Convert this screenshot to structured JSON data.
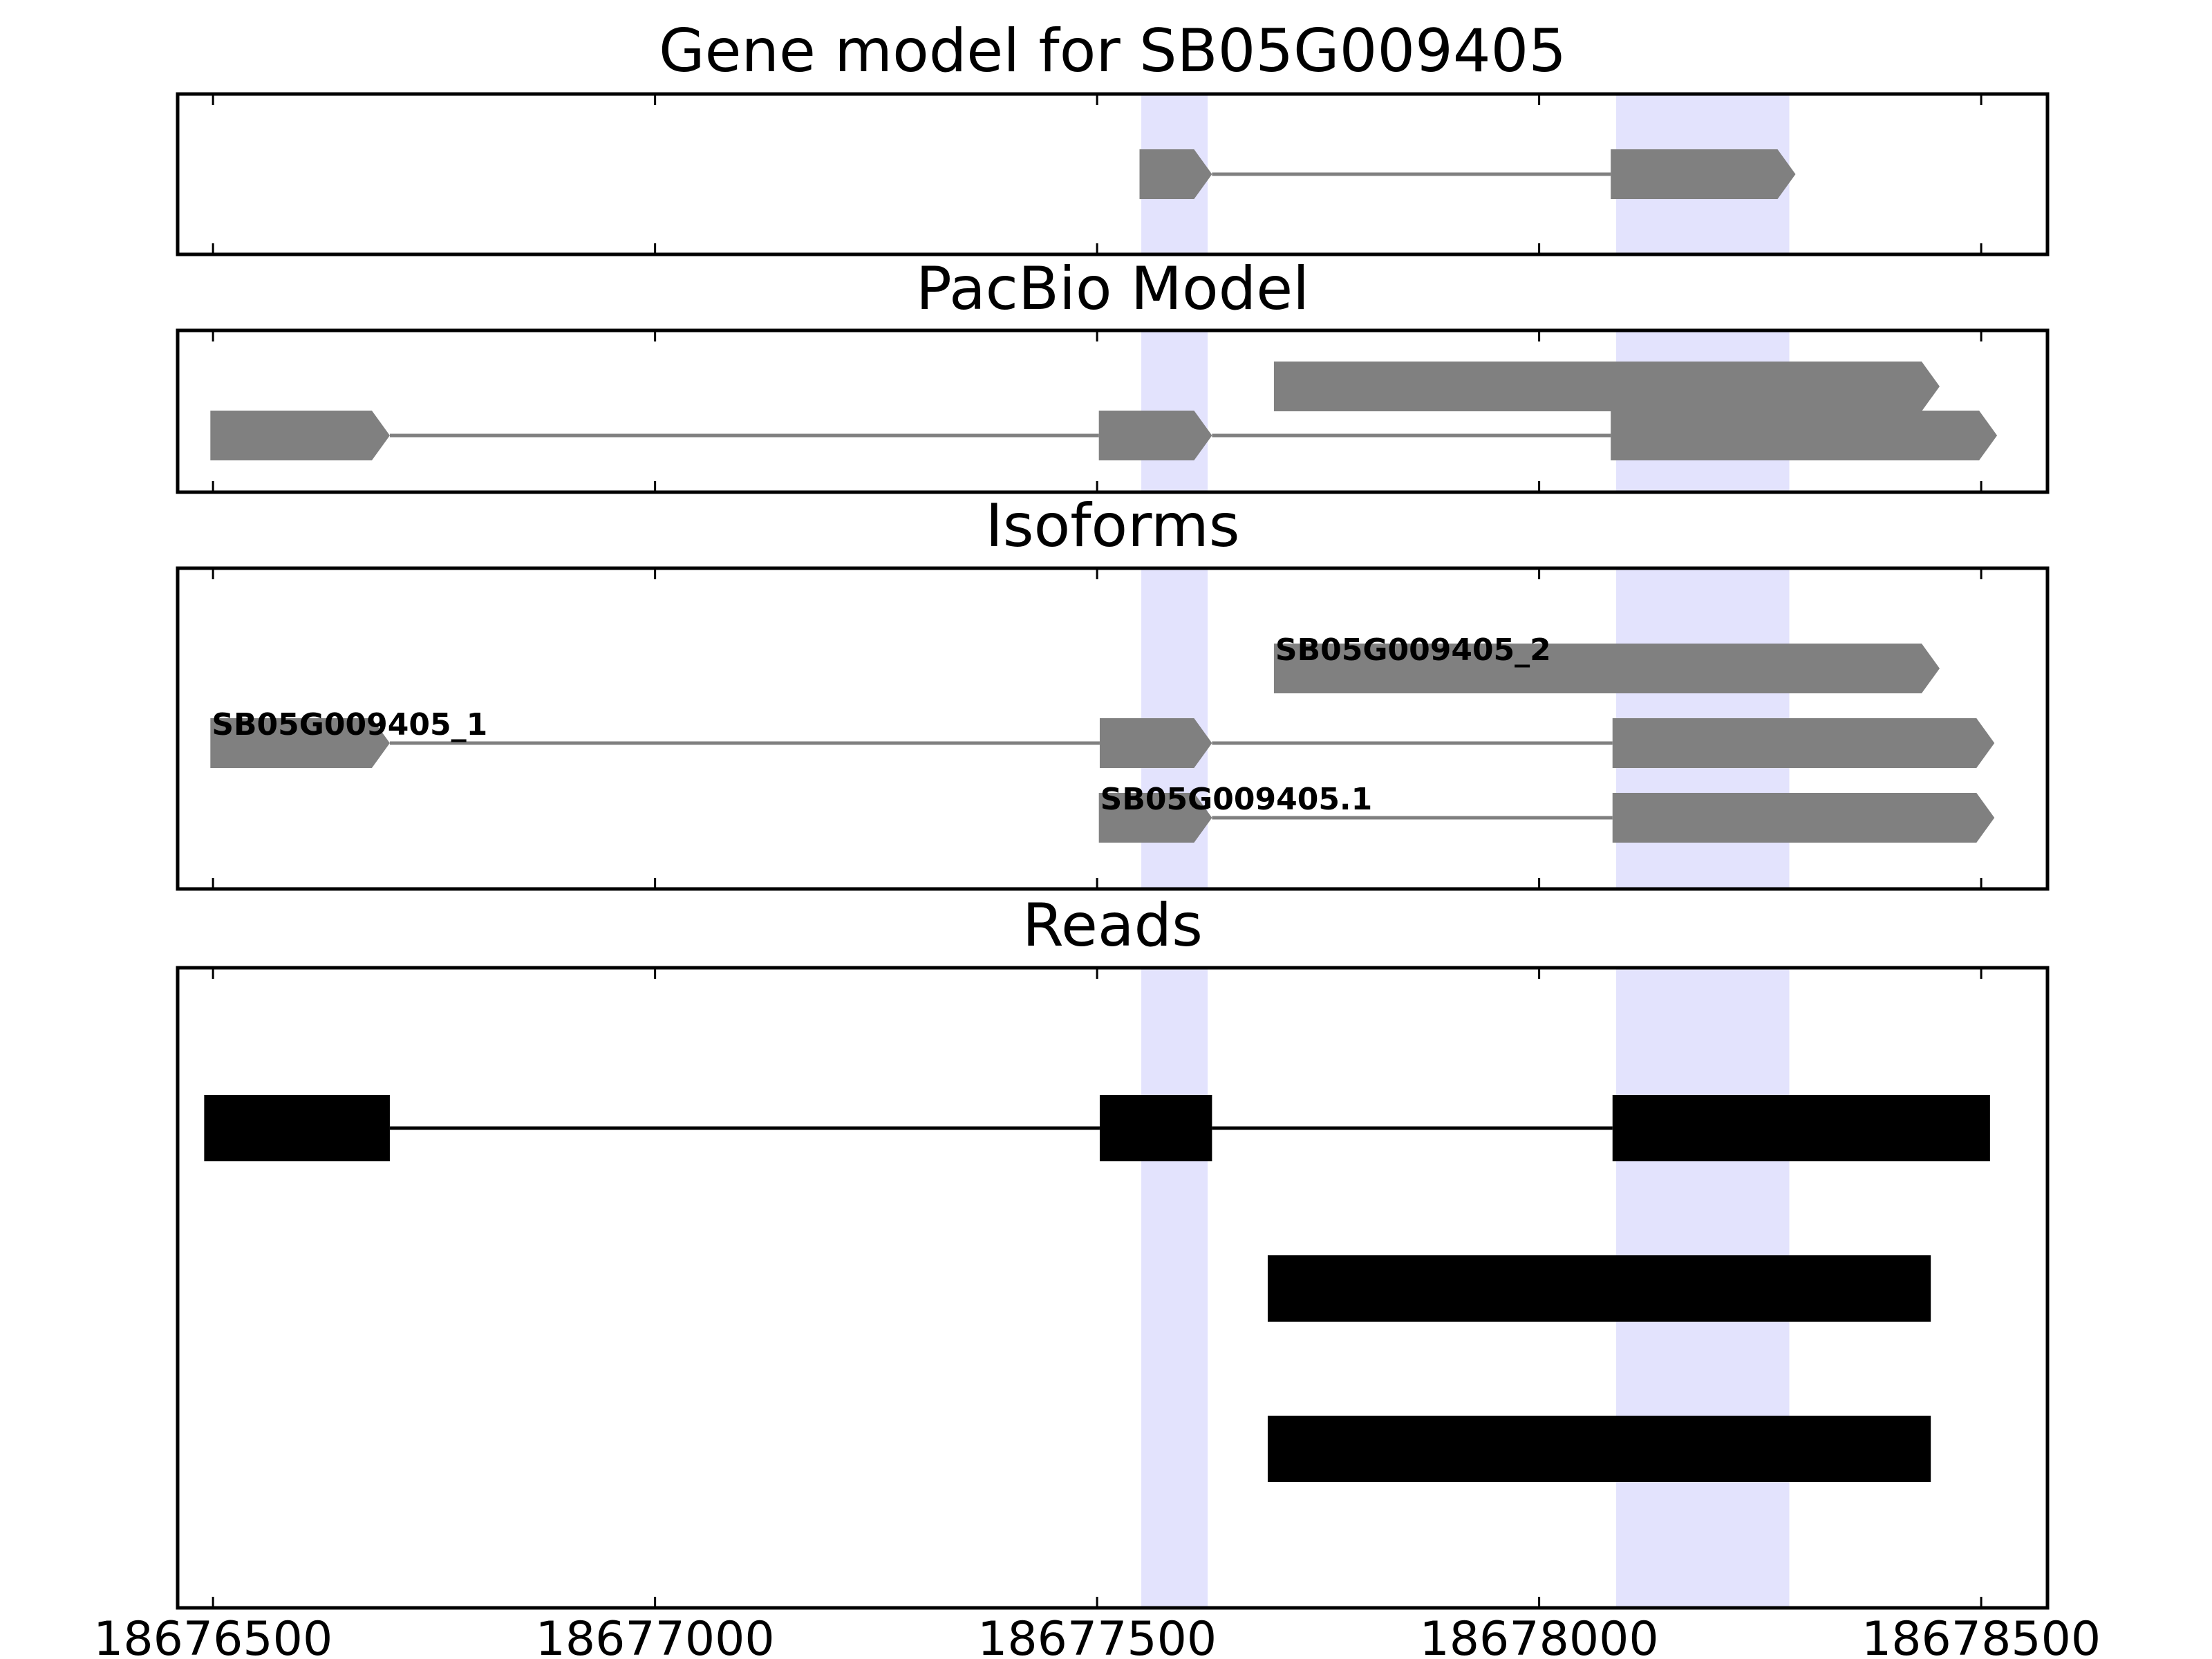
{
  "chart_data": {
    "type": "gene_track",
    "xlim": [
      18676460,
      18678575
    ],
    "xticks": [
      18676500,
      18677000,
      18677500,
      18678000,
      18678500
    ],
    "xtick_labels": [
      "18676500",
      "18677000",
      "18677500",
      "18678000",
      "18678500"
    ],
    "highlight_regions": [
      [
        18677550,
        18677625
      ],
      [
        18678087,
        18678283
      ]
    ],
    "colors": {
      "model_fill": "#808080",
      "model_intron": "#808080",
      "read_fill": "#000000",
      "highlight": "#e3e3fd",
      "frame": "#000000"
    },
    "panels": [
      {
        "id": "gene-model",
        "title": "Gene model for SB05G009405",
        "style": "arrow",
        "rows": 1,
        "features": [
          {
            "row": 0,
            "label": "",
            "exons": [
              [
                18677548,
                18677630
              ],
              [
                18678081,
                18678290
              ]
            ]
          }
        ]
      },
      {
        "id": "pacbio-model",
        "title": "PacBio Model",
        "style": "arrow",
        "rows": 2,
        "features": [
          {
            "row": 0,
            "label": "",
            "exons": [
              [
                18677700,
                18678453
              ]
            ]
          },
          {
            "row": 1,
            "label": "",
            "exons": [
              [
                18676497,
                18676700
              ],
              [
                18677502,
                18677630
              ],
              [
                18678081,
                18678518
              ]
            ]
          }
        ]
      },
      {
        "id": "isoforms",
        "title": "Isoforms",
        "style": "arrow",
        "rows": 3,
        "features": [
          {
            "row": 0,
            "label": "SB05G009405_2",
            "exons": [
              [
                18677700,
                18678453
              ]
            ]
          },
          {
            "row": 1,
            "label": "SB05G009405_1",
            "exons": [
              [
                18676497,
                18676700
              ],
              [
                18677503,
                18677630
              ],
              [
                18678083,
                18678515
              ]
            ]
          },
          {
            "row": 2,
            "label": "SB05G009405.1",
            "exons": [
              [
                18677502,
                18677630
              ],
              [
                18678083,
                18678515
              ]
            ]
          }
        ]
      },
      {
        "id": "reads",
        "title": "Reads",
        "style": "block",
        "rows": 3,
        "features": [
          {
            "row": 0,
            "label": "",
            "exons": [
              [
                18676490,
                18676700
              ],
              [
                18677503,
                18677630
              ],
              [
                18678083,
                18678510
              ]
            ]
          },
          {
            "row": 1,
            "label": "",
            "exons": [
              [
                18677693,
                18678443
              ]
            ]
          },
          {
            "row": 2,
            "label": "",
            "exons": [
              [
                18677693,
                18678443
              ]
            ]
          }
        ]
      }
    ]
  }
}
